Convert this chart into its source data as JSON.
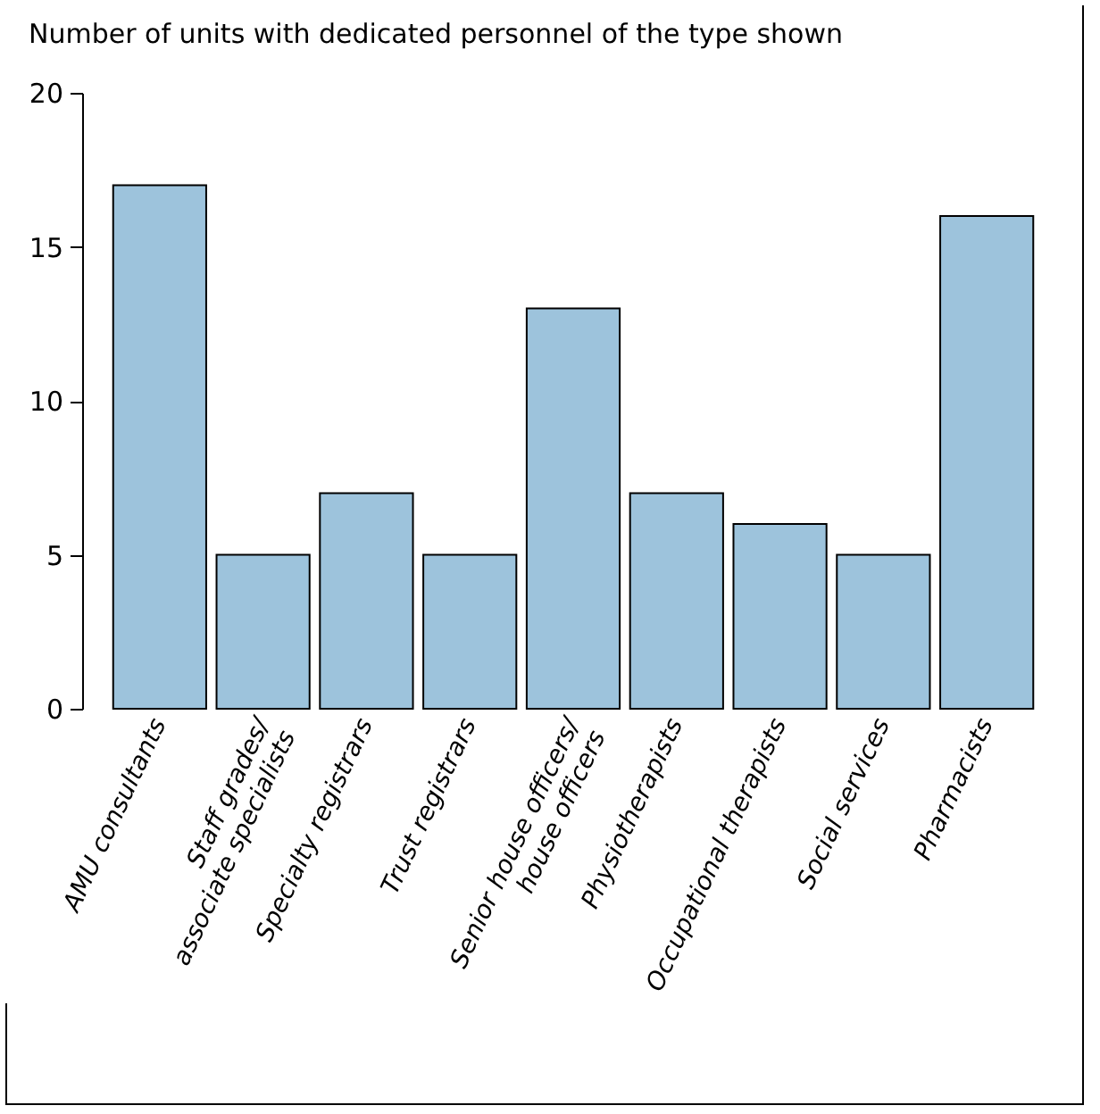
{
  "chart_data": {
    "type": "bar",
    "title": "Number of units with dedicated personnel of the type shown",
    "categories": [
      "AMU consultants",
      "Staff grades/\nassociate specialists",
      "Specialty registrars",
      "Trust registrars",
      "Senior house officers/\nhouse officers",
      "Physiotherapists",
      "Occupational therapists",
      "Social services",
      "Pharmacists"
    ],
    "values": [
      17,
      5,
      7,
      5,
      13,
      7,
      6,
      5,
      16
    ],
    "color": "#9dc3dc",
    "ylim": [
      0,
      20
    ],
    "yticks": [
      0,
      5,
      10,
      15,
      20
    ],
    "grid": false
  }
}
